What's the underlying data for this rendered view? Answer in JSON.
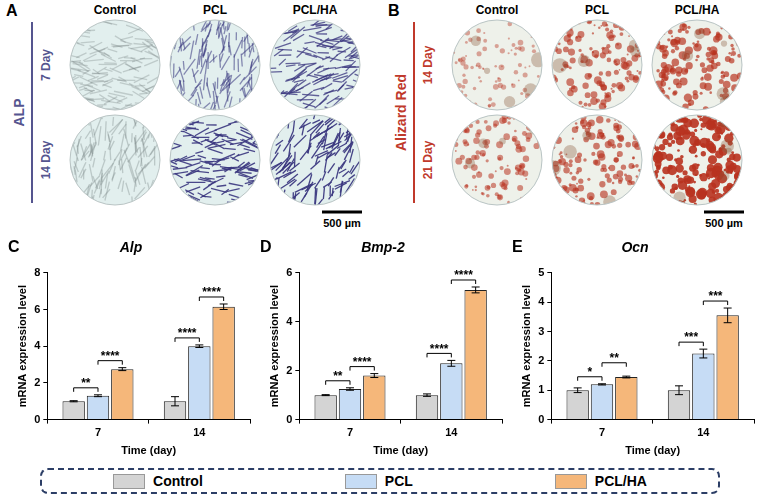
{
  "image_panels": [
    {
      "letter": "A",
      "stain": "ALP",
      "columns": [
        "Control",
        "PCL",
        "PCL/HA"
      ],
      "rows": [
        "7 Day",
        "14 Day"
      ],
      "scale_bar": "500 µm"
    },
    {
      "letter": "B",
      "stain": "Alizard Red",
      "columns": [
        "Control",
        "PCL",
        "PCL/HA"
      ],
      "rows": [
        "14 Day",
        "21 Day"
      ],
      "scale_bar": "500 µm"
    }
  ],
  "chart_data": [
    {
      "panel": "C",
      "type": "bar",
      "title": "Alp",
      "x_label": "Time (day)",
      "y_label": "mRNA expression level",
      "categories": [
        "7",
        "14"
      ],
      "series": [
        {
          "name": "Control",
          "color": "#d4d4d4",
          "values": [
            1.0,
            1.0
          ],
          "errors": [
            0.03,
            0.25
          ]
        },
        {
          "name": "PCL",
          "color": "#c6dcf5",
          "values": [
            1.3,
            4.0
          ],
          "errors": [
            0.05,
            0.07
          ]
        },
        {
          "name": "PCL/HA",
          "color": "#f5b77a",
          "values": [
            2.75,
            6.15
          ],
          "errors": [
            0.08,
            0.15
          ]
        }
      ],
      "ylim": [
        0,
        8
      ],
      "yticks": [
        0,
        2,
        4,
        6,
        8
      ],
      "grid": false,
      "legend": "bottom",
      "significance": [
        {
          "category": "7",
          "from": "Control",
          "to": "PCL",
          "label": "**"
        },
        {
          "category": "7",
          "from": "PCL",
          "to": "PCL/HA",
          "label": "****"
        },
        {
          "category": "14",
          "from": "Control",
          "to": "PCL",
          "label": "****"
        },
        {
          "category": "14",
          "from": "PCL",
          "to": "PCL/HA",
          "label": "****"
        }
      ]
    },
    {
      "panel": "D",
      "type": "bar",
      "title": "Bmp-2",
      "x_label": "Time (day)",
      "y_label": "mRNA expression level",
      "categories": [
        "7",
        "14"
      ],
      "series": [
        {
          "name": "Control",
          "color": "#d4d4d4",
          "values": [
            1.0,
            1.0
          ],
          "errors": [
            0.02,
            0.05
          ]
        },
        {
          "name": "PCL",
          "color": "#c6dcf5",
          "values": [
            1.25,
            2.3
          ],
          "errors": [
            0.05,
            0.12
          ]
        },
        {
          "name": "PCL/HA",
          "color": "#f5b77a",
          "values": [
            1.8,
            5.3
          ],
          "errors": [
            0.08,
            0.12
          ]
        }
      ],
      "ylim": [
        0,
        6
      ],
      "yticks": [
        0,
        2,
        4,
        6
      ],
      "grid": false,
      "legend": "bottom",
      "significance": [
        {
          "category": "7",
          "from": "Control",
          "to": "PCL",
          "label": "**"
        },
        {
          "category": "7",
          "from": "PCL",
          "to": "PCL/HA",
          "label": "****"
        },
        {
          "category": "14",
          "from": "Control",
          "to": "PCL",
          "label": "****"
        },
        {
          "category": "14",
          "from": "PCL",
          "to": "PCL/HA",
          "label": "****"
        }
      ]
    },
    {
      "panel": "E",
      "type": "bar",
      "title": "Ocn",
      "x_label": "Time (day)",
      "y_label": "mRNA expression level",
      "categories": [
        "7",
        "14"
      ],
      "series": [
        {
          "name": "Control",
          "color": "#d4d4d4",
          "values": [
            1.0,
            1.0
          ],
          "errors": [
            0.08,
            0.15
          ]
        },
        {
          "name": "PCL",
          "color": "#c6dcf5",
          "values": [
            1.2,
            2.25
          ],
          "errors": [
            0.02,
            0.15
          ]
        },
        {
          "name": "PCL/HA",
          "color": "#f5b77a",
          "values": [
            1.45,
            3.55
          ],
          "errors": [
            0.03,
            0.25
          ]
        }
      ],
      "ylim": [
        0,
        5
      ],
      "yticks": [
        0,
        1,
        2,
        3,
        4,
        5
      ],
      "grid": false,
      "legend": "bottom",
      "significance": [
        {
          "category": "7",
          "from": "Control",
          "to": "PCL",
          "label": "*"
        },
        {
          "category": "7",
          "from": "PCL",
          "to": "PCL/HA",
          "label": "**"
        },
        {
          "category": "14",
          "from": "Control",
          "to": "PCL",
          "label": "***"
        },
        {
          "category": "14",
          "from": "PCL",
          "to": "PCL/HA",
          "label": "***"
        }
      ]
    }
  ]
}
